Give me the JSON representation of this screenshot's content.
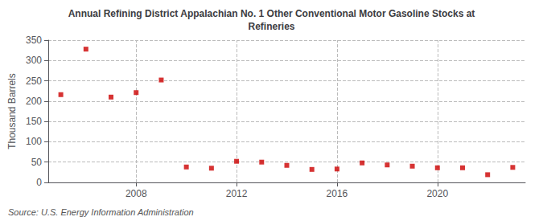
{
  "chart_data": {
    "type": "scatter",
    "title": "Annual Refining District Appalachian No. 1 Other Conventional Motor Gasoline Stocks at\nRefineries",
    "ylabel": "Thousand Barrels",
    "annotations": [
      "Source: U.S. Energy Information Administration"
    ],
    "x": [
      2005,
      2006,
      2007,
      2008,
      2009,
      2010,
      2011,
      2012,
      2013,
      2014,
      2015,
      2016,
      2017,
      2018,
      2019,
      2020,
      2021,
      2022,
      2023
    ],
    "values": [
      216,
      328,
      210,
      221,
      252,
      38,
      35,
      52,
      50,
      42,
      32,
      33,
      48,
      43,
      40,
      36,
      36,
      19,
      37
    ],
    "color": "#cc0000",
    "marker": "square",
    "xlim": [
      2004.5,
      2023.5
    ],
    "xticks": [
      2008,
      2012,
      2016,
      2020
    ],
    "ylim": [
      0,
      350
    ],
    "yticks": [
      0,
      50,
      100,
      150,
      200,
      250,
      300,
      350
    ],
    "grid": true
  }
}
